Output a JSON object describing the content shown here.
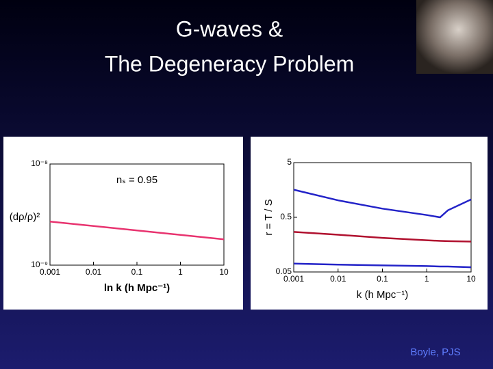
{
  "slide": {
    "title_lines": [
      "G-waves &",
      "The Degeneracy Problem"
    ],
    "credit": "Boyle, PJS"
  },
  "chart_data": [
    {
      "type": "line",
      "x_label": "ln k (h Mpc⁻¹)",
      "y_label": "(dρ/ρ)²",
      "annotation": "nₛ = 0.95",
      "log_x": true,
      "log_y": true,
      "xlim": [
        0.001,
        10
      ],
      "xticks": [
        0.001,
        0.01,
        0.1,
        1,
        10
      ],
      "ylim": [
        1e-09,
        1e-08
      ],
      "yticks": [
        {
          "value": 1e-09,
          "label": "10⁻⁹"
        },
        {
          "value": 1e-08,
          "label": "10⁻⁸"
        }
      ],
      "x": [
        0.001,
        10
      ],
      "series": [
        {
          "color": "#e8336f",
          "values": [
            2.7e-09,
            1.8e-09
          ]
        }
      ]
    },
    {
      "type": "line",
      "x_label": "k (h Mpc⁻¹)",
      "y_label": "r = T / S",
      "log_x": true,
      "log_y": true,
      "xlim": [
        0.001,
        10
      ],
      "xticks": [
        0.001,
        0.01,
        0.1,
        1,
        10
      ],
      "ylim": [
        0.05,
        5
      ],
      "yticks": [
        0.05,
        0.5,
        5
      ],
      "x": [
        0.001,
        0.01,
        0.1,
        1,
        2,
        3,
        10
      ],
      "series": [
        {
          "color": "#2323c8",
          "values": [
            1.6,
            1.02,
            0.72,
            0.55,
            0.5,
            0.67,
            1.06
          ]
        },
        {
          "color": "#b0102e",
          "values": [
            0.27,
            0.24,
            0.21,
            0.19,
            0.185,
            0.183,
            0.18
          ]
        },
        {
          "color": "#2323c8",
          "values": [
            0.071,
            0.068,
            0.066,
            0.064,
            0.063,
            0.063,
            0.061
          ]
        }
      ]
    }
  ]
}
